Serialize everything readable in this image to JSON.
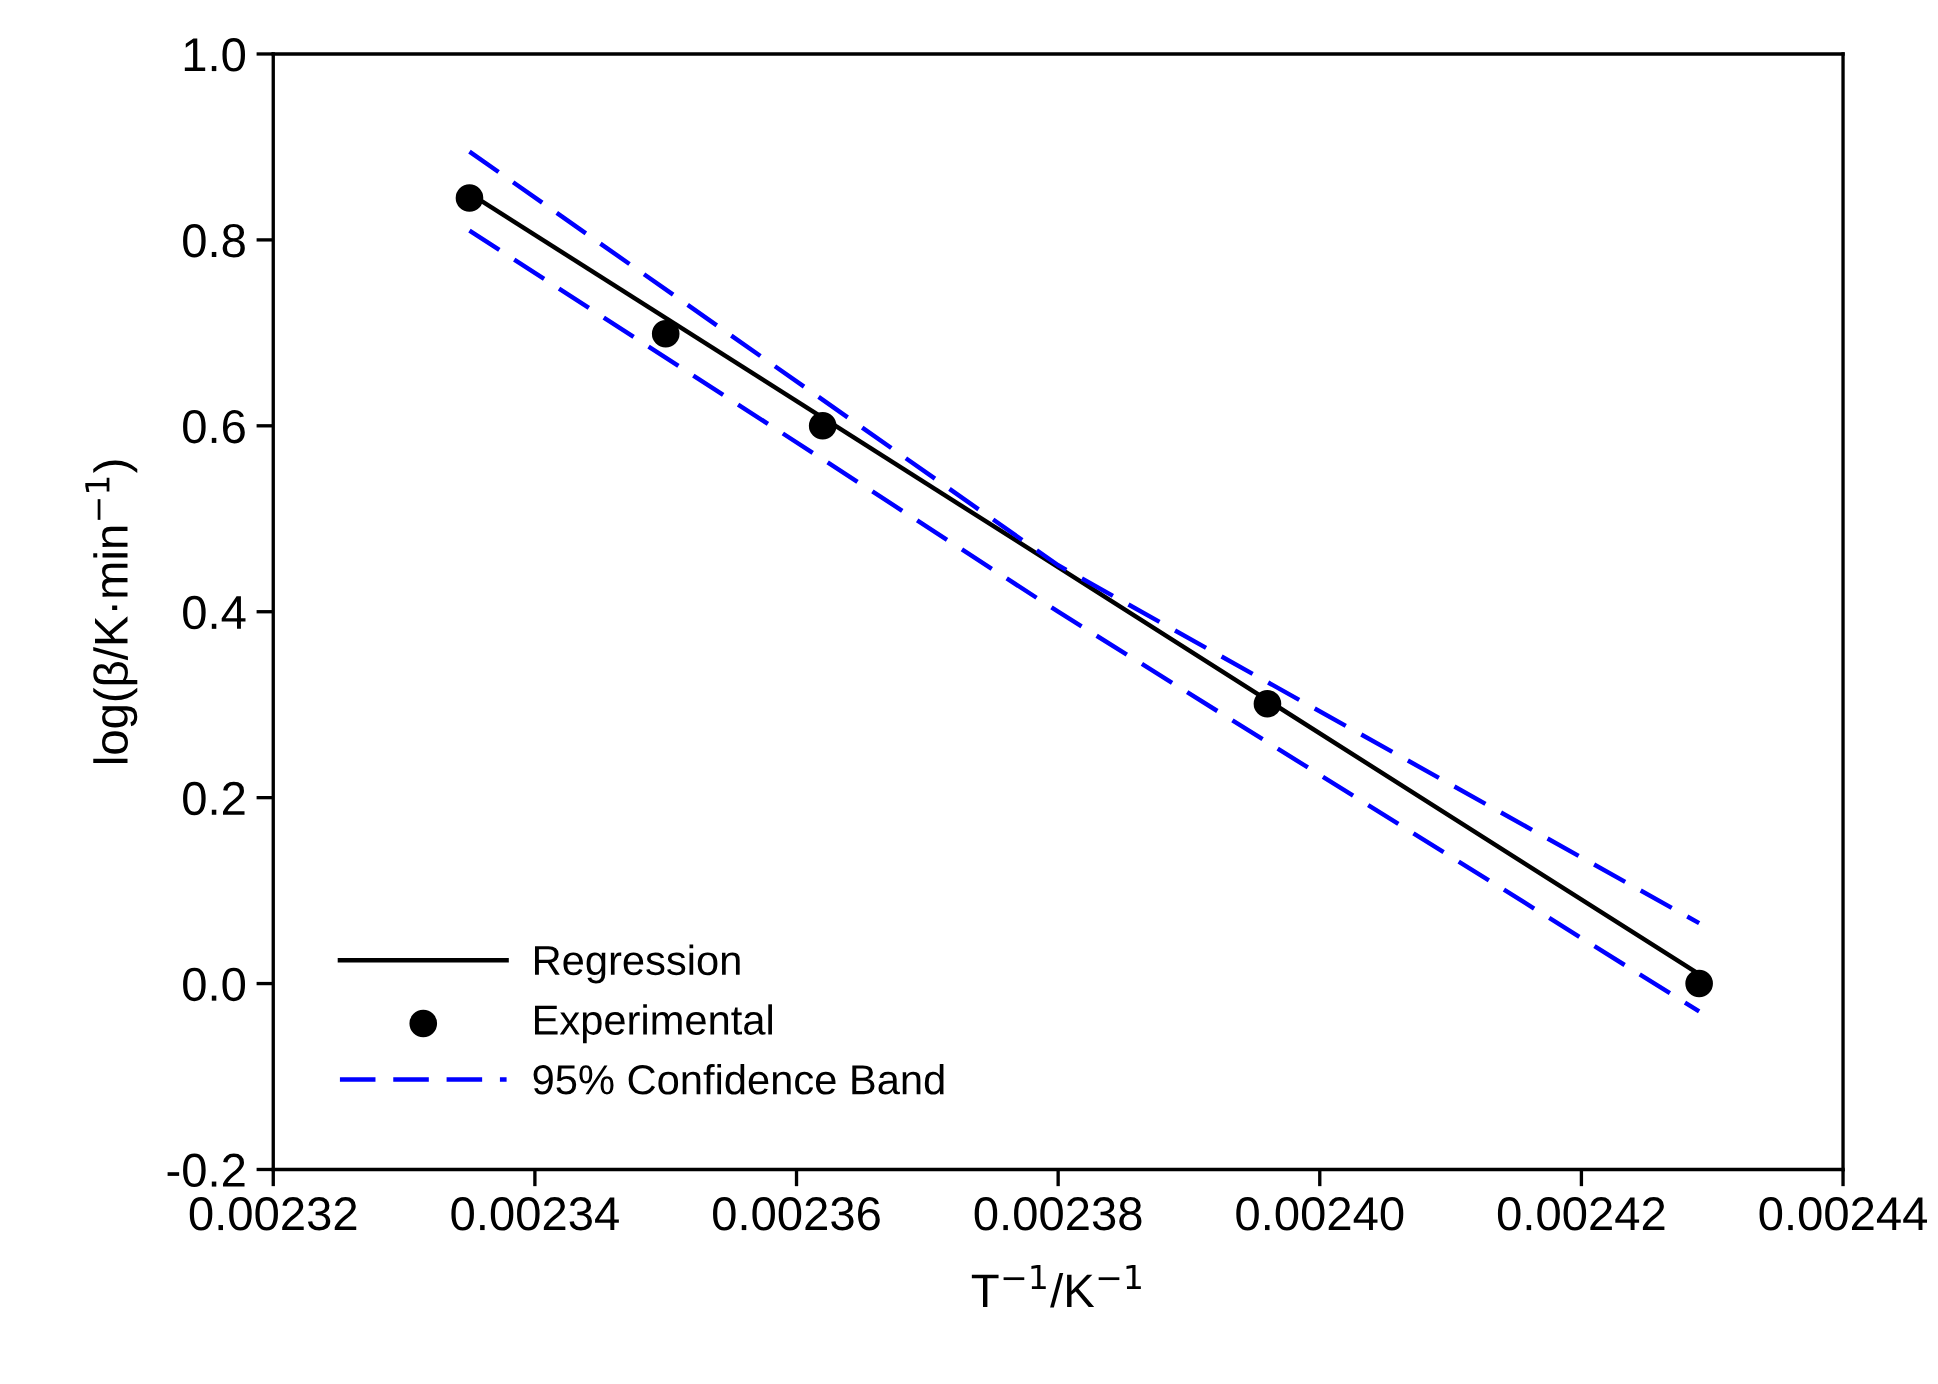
{
  "chart_data": {
    "type": "scatter",
    "xlabel": "T$^{−1}$/K$^{−1}$",
    "ylabel": "log(β/K·min$^{−1}$)",
    "xlim": [
      0.00232,
      0.00244
    ],
    "xticks": [
      0.00232,
      0.00234,
      0.00236,
      0.00238,
      {
        "value": 0.0024,
        "label": "0.00240"
      },
      0.00242,
      0.00244
    ],
    "ylim": [
      -0.2,
      1.0
    ],
    "yticks": [
      -0.2,
      {
        "value": 0.0,
        "label": "0.0"
      },
      0.2,
      0.4,
      0.6,
      0.8,
      {
        "value": 1.0,
        "label": "1.0"
      }
    ],
    "grid": false,
    "legend": "bottom left",
    "series": [
      {
        "name": "Regression",
        "type": "line",
        "color": "#000000",
        "line_style": "solid",
        "marker": "none",
        "x": [
          0.002335,
          0.002429
        ],
        "values": [
          0.85,
          0.01
        ]
      },
      {
        "name": "Experimental",
        "color": "#000000",
        "marker": "circle",
        "x": [
          0.002335,
          0.00235,
          0.002362,
          0.002396,
          0.002429
        ],
        "values": [
          0.845,
          0.699,
          0.6,
          0.301,
          0.0
        ]
      },
      {
        "name": "95% Confidence Band",
        "type": "line",
        "color": "#0000ff",
        "line_style": "dashed",
        "marker": "none",
        "x": [
          0.002335,
          0.00238,
          0.002429
        ],
        "values": [
          0.895,
          0.45,
          0.065
        ]
      },
      {
        "type": "line",
        "color": "#0000ff",
        "line_style": "dashed",
        "marker": "none",
        "x": [
          0.002335,
          0.00238,
          0.002429
        ],
        "values": [
          0.81,
          0.4,
          -0.03
        ]
      }
    ]
  }
}
